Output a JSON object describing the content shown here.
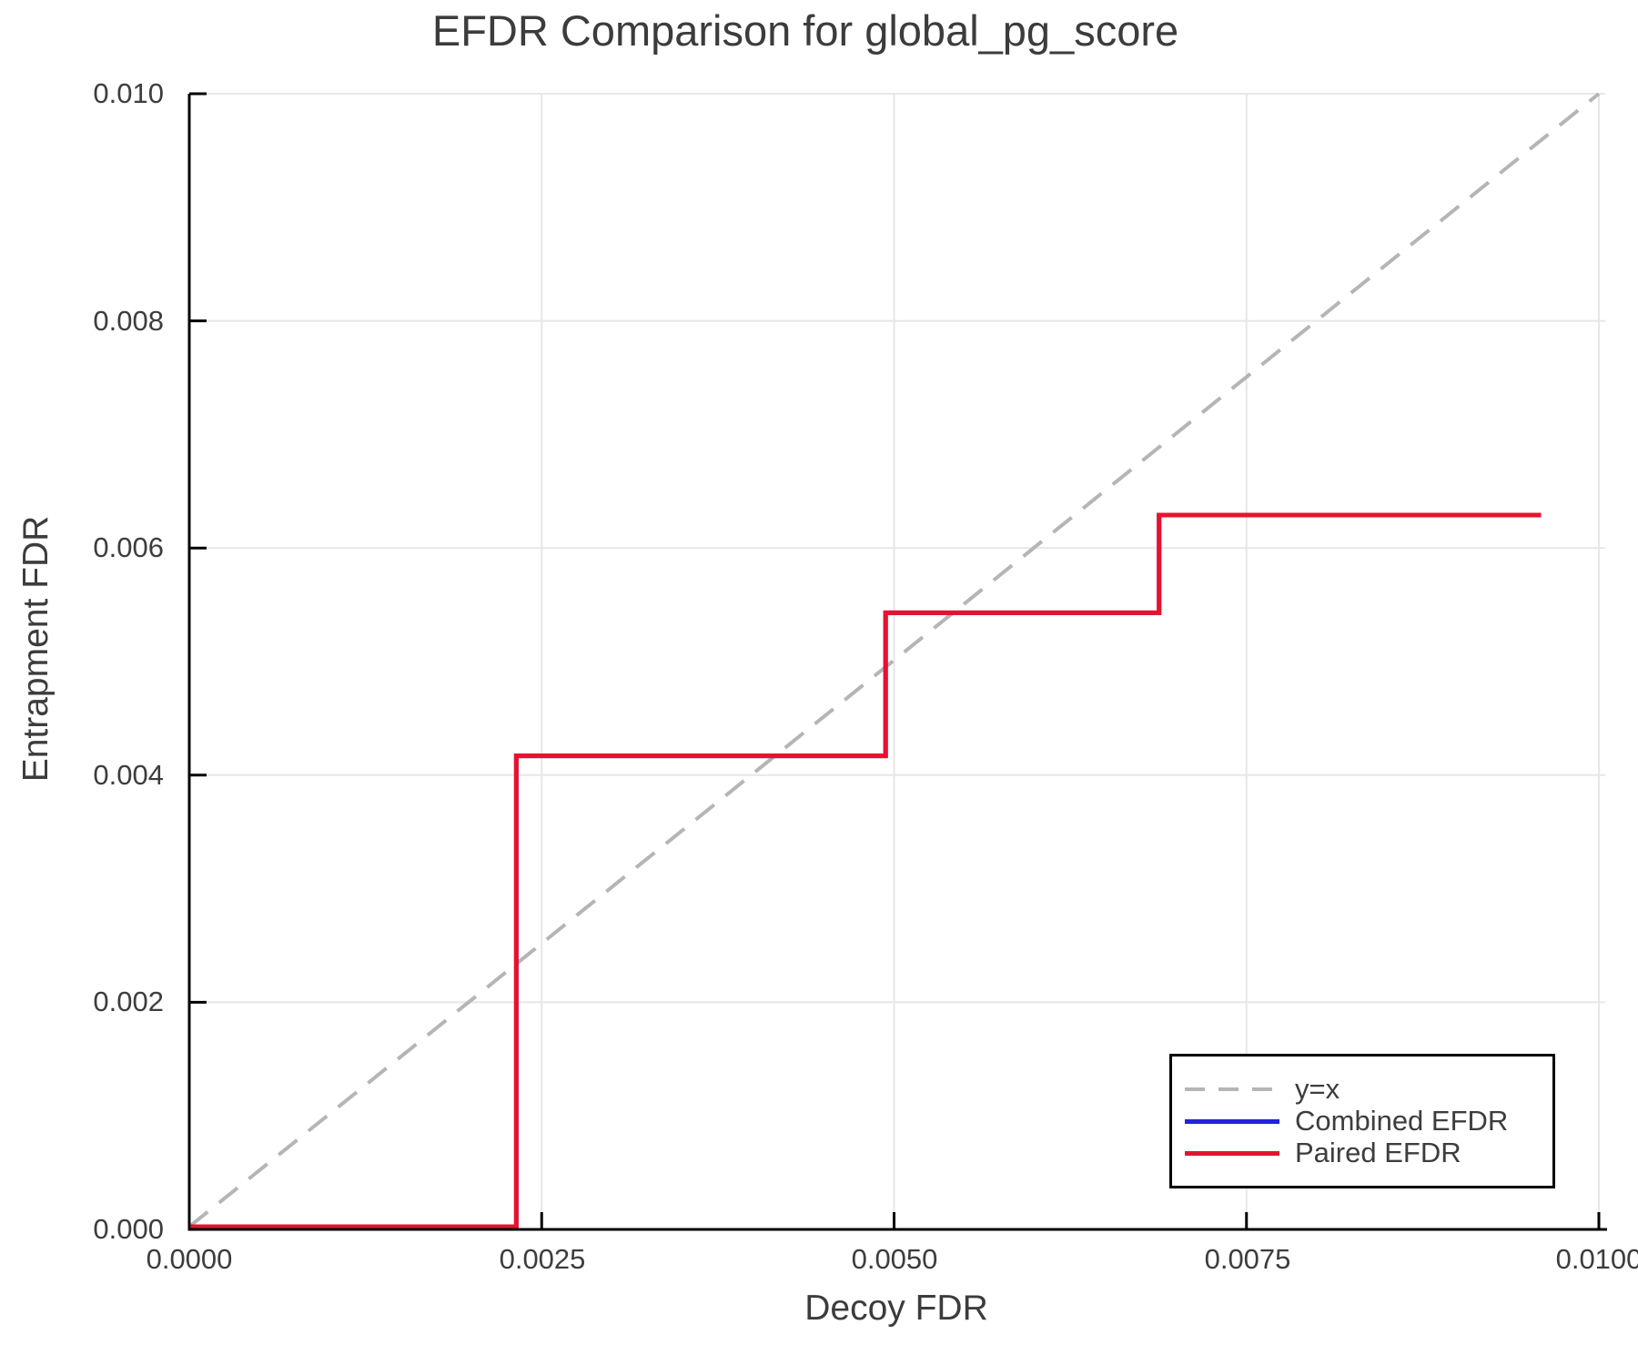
{
  "chart_data": {
    "type": "line",
    "title": "EFDR Comparison for global_pg_score",
    "xlabel": "Decoy FDR",
    "ylabel": "Entrapment FDR",
    "xlim": [
      0.0,
      0.01
    ],
    "ylim": [
      0.0,
      0.01
    ],
    "grid": true,
    "grid_color": "#e7e7e7",
    "axis_color": "#000000",
    "text_color": "#3d3d3d",
    "legend_position": "lower right",
    "x_ticks": {
      "values": [
        0.0,
        0.0025,
        0.005,
        0.0075,
        0.01
      ],
      "labels": [
        "0.0000",
        "0.0025",
        "0.0050",
        "0.0075",
        "0.0100"
      ]
    },
    "y_ticks": {
      "values": [
        0.0,
        0.002,
        0.004,
        0.006,
        0.008,
        0.01
      ],
      "labels": [
        "0.000",
        "0.002",
        "0.004",
        "0.006",
        "0.008",
        "0.010"
      ]
    },
    "series": [
      {
        "name": "y=x",
        "style": "dashed",
        "color": "#b5b5b5",
        "points": [
          [
            0.0,
            0.0
          ],
          [
            0.01,
            0.01
          ]
        ]
      },
      {
        "name": "Combined EFDR",
        "style": "solid",
        "color": "#2323dc",
        "points": [
          [
            0.0,
            0.0
          ],
          [
            0.00232,
            0.0
          ],
          [
            0.00232,
            0.00417
          ],
          [
            0.00494,
            0.00417
          ],
          [
            0.00494,
            0.00543
          ],
          [
            0.00688,
            0.00543
          ],
          [
            0.00688,
            0.00629
          ],
          [
            0.00959,
            0.00629
          ]
        ]
      },
      {
        "name": "Paired EFDR",
        "style": "solid",
        "color": "#e8122f",
        "points": [
          [
            0.0,
            0.0
          ],
          [
            0.00232,
            0.0
          ],
          [
            0.00232,
            0.00417
          ],
          [
            0.00494,
            0.00417
          ],
          [
            0.00494,
            0.00543
          ],
          [
            0.00688,
            0.00543
          ],
          [
            0.00688,
            0.00629
          ],
          [
            0.00959,
            0.00629
          ]
        ]
      }
    ]
  }
}
